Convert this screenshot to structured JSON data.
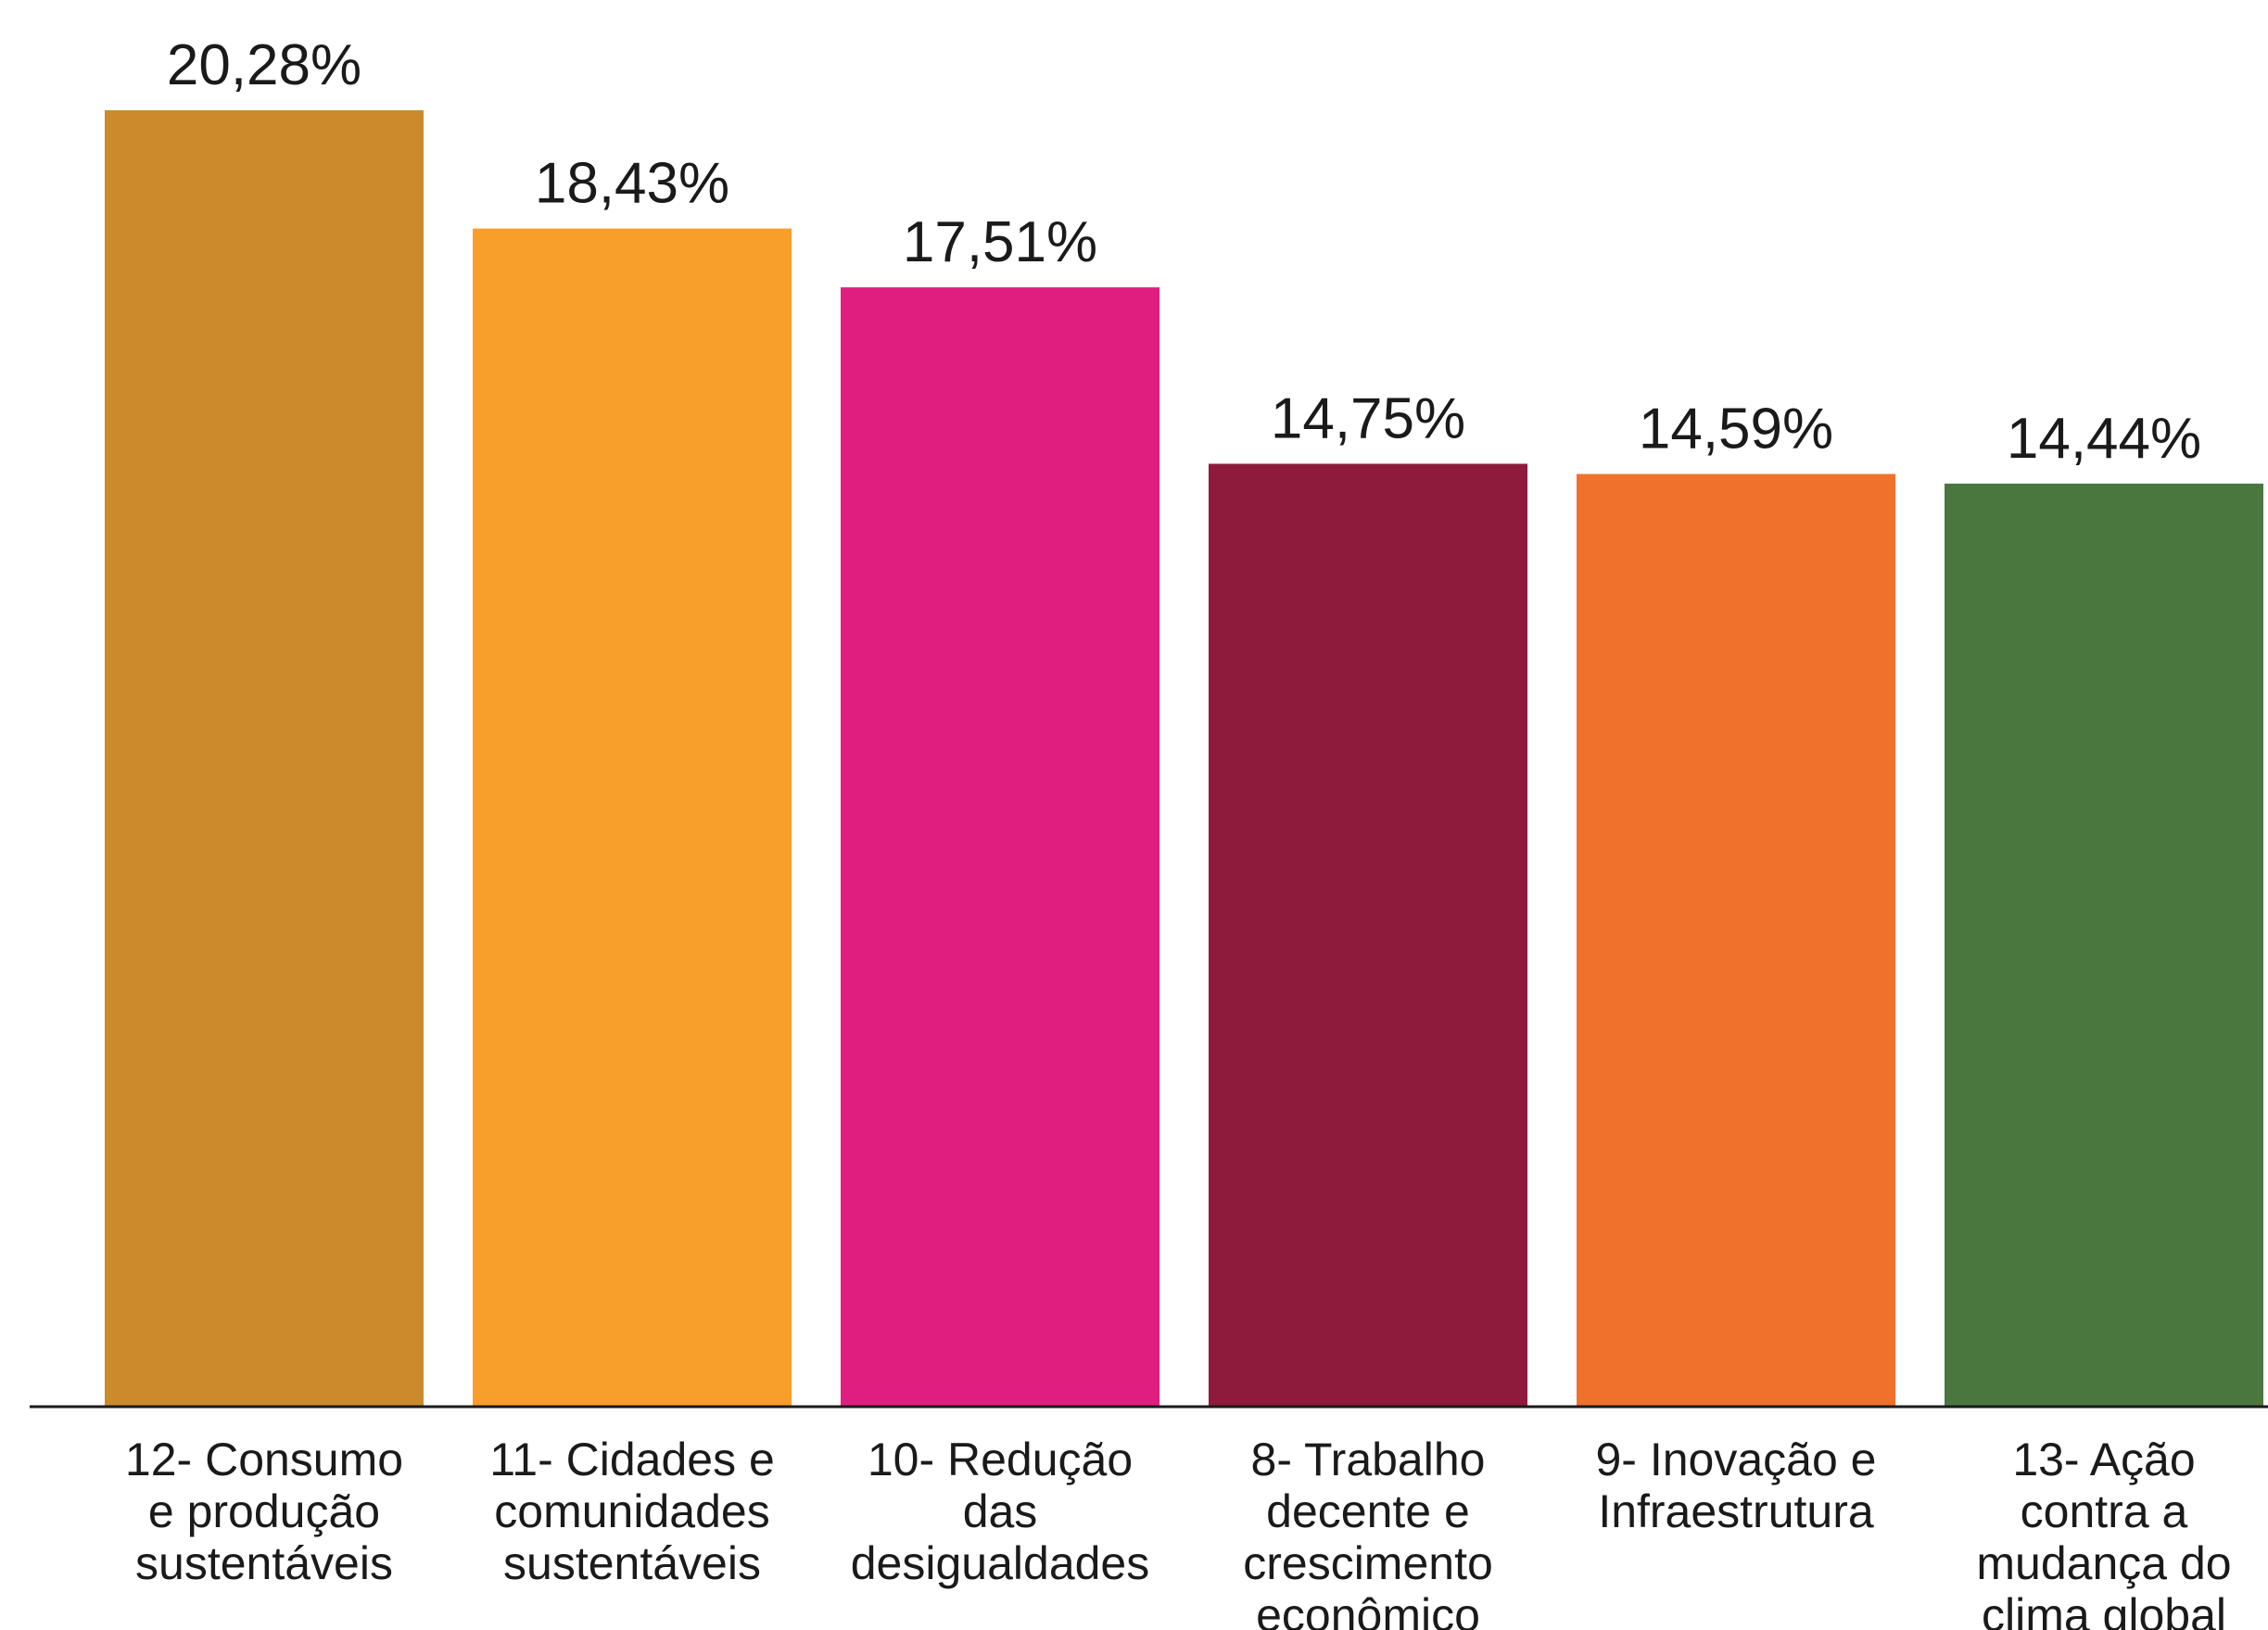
{
  "chart_data": {
    "type": "bar",
    "categories": [
      [
        "12- Consumo",
        "e produção",
        "sustentáveis"
      ],
      [
        "11- Cidades e",
        "comunidades",
        "sustentáveis"
      ],
      [
        "10- Redução",
        "das",
        "desigualdades"
      ],
      [
        "8- Trabalho",
        "decente e",
        "crescimento",
        "econômico"
      ],
      [
        "9- Inovação e",
        "Infraestrutura"
      ],
      [
        "13- Ação",
        "contra a",
        "mudança do",
        "clima global"
      ]
    ],
    "values": [
      20.28,
      18.43,
      17.51,
      14.75,
      14.59,
      14.44
    ],
    "value_labels": [
      "20,28%",
      "18,43%",
      "17,51%",
      "14,75%",
      "14,59%",
      "14,44%"
    ],
    "colors": [
      "#CB8A2C",
      "#F89E2B",
      "#E01E80",
      "#8E1A3C",
      "#F0712B",
      "#4A773E"
    ],
    "ylim": [
      0,
      20.28
    ],
    "grid": false,
    "legend": "none",
    "title": "",
    "xlabel": "",
    "ylabel": ""
  }
}
